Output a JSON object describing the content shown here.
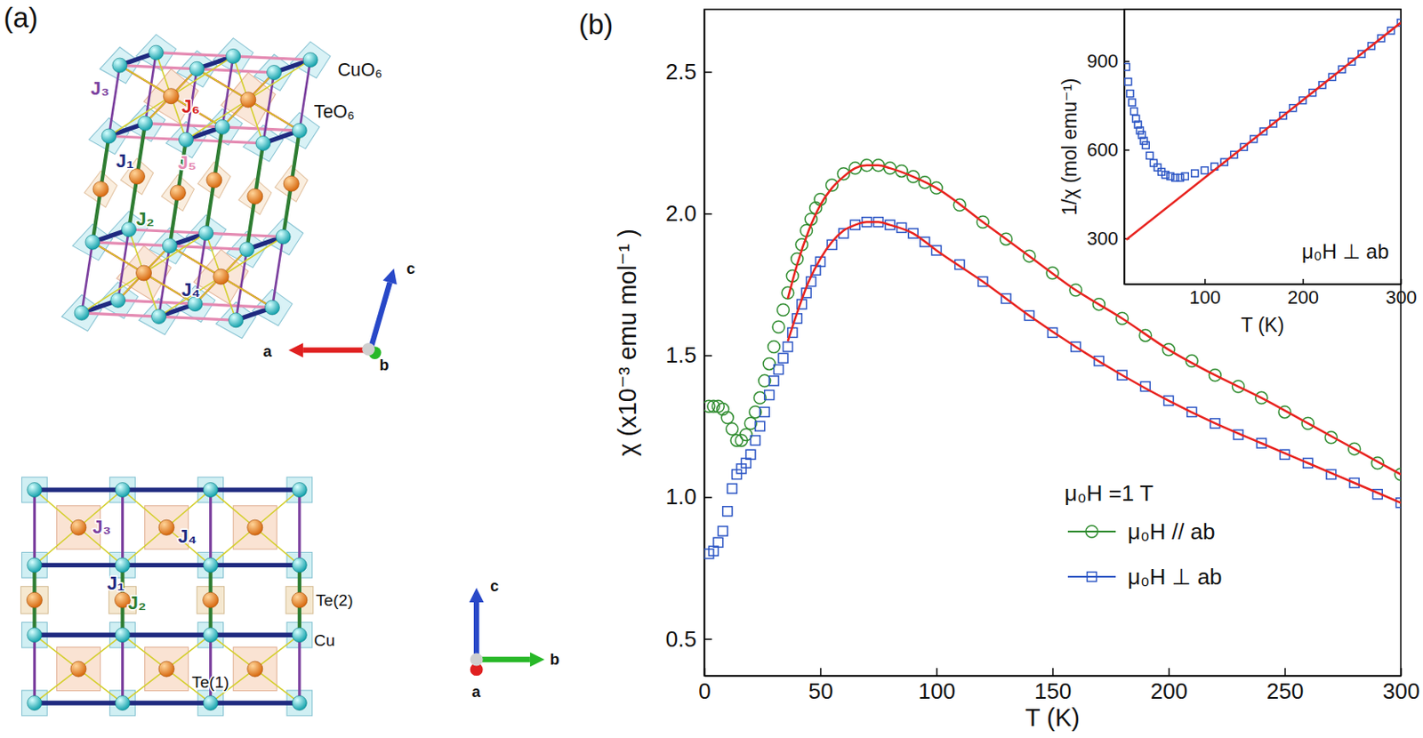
{
  "diagram": {
    "panel_label": "(a)",
    "top": {
      "polyhedra": [
        "CuO₆",
        "TeO₆"
      ],
      "couplings": [
        "J₁",
        "J₂",
        "J₃",
        "J₄",
        "J₅",
        "J₆"
      ],
      "axes": [
        "a",
        "b",
        "c"
      ]
    },
    "bottom": {
      "couplings": [
        "J₁",
        "J₂",
        "J₃",
        "J₄"
      ],
      "atoms": [
        "Te(2)",
        "Cu",
        "Te(1)"
      ],
      "axes": [
        "a",
        "b",
        "c"
      ]
    }
  },
  "chart_data": [
    {
      "type": "scatter",
      "annotations": [
        "(b)",
        "μ₀H =1 T"
      ],
      "x_label": "T (K)",
      "y_label": "χ (x10⁻³ emu mol⁻¹ )",
      "xlim": [
        0,
        300
      ],
      "xticks": [
        0,
        50,
        100,
        150,
        200,
        250,
        300
      ],
      "ylim": [
        0.37,
        2.72
      ],
      "yticks": [
        0.5,
        {
          "value": 1,
          "label": "1.0"
        },
        1.5,
        {
          "value": 2,
          "label": "2.0"
        },
        2.5
      ],
      "grid": false,
      "legend": "bottom right",
      "series": [
        {
          "name": "μ₀H // ab",
          "color": "#2e8b2e",
          "marker": "circle",
          "x": [
            2,
            4,
            6,
            8,
            10,
            12,
            14,
            16,
            18,
            20,
            22,
            24,
            26,
            28,
            30,
            32,
            34,
            36,
            38,
            40,
            42,
            44,
            46,
            48,
            50,
            55,
            60,
            65,
            70,
            75,
            80,
            85,
            90,
            95,
            100,
            110,
            120,
            130,
            140,
            150,
            160,
            170,
            180,
            190,
            200,
            210,
            220,
            230,
            240,
            250,
            260,
            270,
            280,
            290,
            300
          ],
          "values": [
            1.32,
            1.32,
            1.32,
            1.31,
            1.28,
            1.24,
            1.2,
            1.2,
            1.22,
            1.26,
            1.3,
            1.35,
            1.41,
            1.47,
            1.53,
            1.6,
            1.66,
            1.72,
            1.78,
            1.84,
            1.89,
            1.94,
            1.98,
            2.02,
            2.05,
            2.1,
            2.14,
            2.16,
            2.17,
            2.17,
            2.16,
            2.15,
            2.13,
            2.11,
            2.09,
            2.03,
            1.97,
            1.91,
            1.85,
            1.79,
            1.73,
            1.68,
            1.63,
            1.57,
            1.52,
            1.48,
            1.43,
            1.39,
            1.35,
            1.3,
            1.26,
            1.21,
            1.17,
            1.12,
            1.08
          ]
        },
        {
          "name": "μ₀H ⊥ ab",
          "color": "#2a54c4",
          "marker": "square",
          "x": [
            2,
            4,
            6,
            8,
            10,
            12,
            14,
            16,
            18,
            20,
            22,
            24,
            26,
            28,
            30,
            32,
            34,
            36,
            38,
            40,
            42,
            44,
            46,
            48,
            50,
            55,
            60,
            65,
            70,
            75,
            80,
            85,
            90,
            95,
            100,
            110,
            120,
            130,
            140,
            150,
            160,
            170,
            180,
            190,
            200,
            210,
            220,
            230,
            240,
            250,
            260,
            270,
            280,
            290,
            300
          ],
          "values": [
            0.8,
            0.81,
            0.84,
            0.88,
            0.95,
            1.03,
            1.08,
            1.1,
            1.12,
            1.15,
            1.2,
            1.25,
            1.3,
            1.36,
            1.41,
            1.45,
            1.49,
            1.53,
            1.58,
            1.63,
            1.68,
            1.72,
            1.76,
            1.8,
            1.83,
            1.89,
            1.93,
            1.96,
            1.97,
            1.97,
            1.96,
            1.95,
            1.93,
            1.9,
            1.87,
            1.82,
            1.76,
            1.7,
            1.64,
            1.58,
            1.53,
            1.48,
            1.43,
            1.39,
            1.34,
            1.3,
            1.26,
            1.22,
            1.19,
            1.15,
            1.12,
            1.08,
            1.05,
            1.01,
            0.98
          ]
        },
        {
          "type": "line",
          "color": "#e8231f",
          "line_style": "solid",
          "x": [
            36,
            40,
            45,
            50,
            55,
            60,
            65,
            70,
            75,
            80,
            90,
            100,
            120,
            140,
            160,
            180,
            200,
            220,
            240,
            260,
            280,
            300
          ],
          "values": [
            1.7,
            1.82,
            1.94,
            2.03,
            2.09,
            2.13,
            2.16,
            2.17,
            2.17,
            2.16,
            2.13,
            2.09,
            1.97,
            1.85,
            1.73,
            1.63,
            1.52,
            1.43,
            1.35,
            1.26,
            1.17,
            1.08
          ]
        },
        {
          "type": "line",
          "color": "#e8231f",
          "line_style": "solid",
          "x": [
            36,
            40,
            45,
            50,
            55,
            60,
            65,
            70,
            75,
            80,
            90,
            100,
            120,
            140,
            160,
            180,
            200,
            220,
            240,
            260,
            280,
            300
          ],
          "values": [
            1.55,
            1.65,
            1.76,
            1.84,
            1.9,
            1.94,
            1.96,
            1.97,
            1.97,
            1.96,
            1.93,
            1.87,
            1.76,
            1.64,
            1.53,
            1.43,
            1.34,
            1.26,
            1.19,
            1.12,
            1.05,
            0.98
          ]
        }
      ]
    },
    {
      "type": "scatter",
      "annotations": [
        "μ₀H ⊥ ab"
      ],
      "x_label": "T (K)",
      "y_label": "1/χ (mol emu⁻¹)",
      "xlim": [
        18,
        300
      ],
      "xticks": [
        100,
        200,
        300
      ],
      "ylim": [
        145,
        1075
      ],
      "yticks": [
        300,
        600,
        900
      ],
      "grid": false,
      "series": [
        {
          "color": "#2a54c4",
          "marker": "square",
          "x": [
            20,
            22,
            24,
            26,
            28,
            30,
            32,
            34,
            36,
            38,
            40,
            44,
            48,
            52,
            56,
            60,
            65,
            70,
            75,
            80,
            90,
            100,
            110,
            120,
            130,
            140,
            150,
            160,
            170,
            180,
            190,
            200,
            210,
            220,
            230,
            240,
            250,
            260,
            270,
            280,
            290,
            300
          ],
          "values": [
            880,
            830,
            790,
            760,
            730,
            705,
            685,
            665,
            650,
            630,
            615,
            580,
            555,
            540,
            525,
            515,
            510,
            505,
            505,
            510,
            520,
            530,
            543,
            558,
            583,
            609,
            636,
            662,
            688,
            715,
            741,
            767,
            793,
            819,
            846,
            872,
            898,
            924,
            951,
            977,
            1003,
            1030
          ]
        },
        {
          "type": "line",
          "color": "#e8231f",
          "line_style": "solid",
          "x": [
            20,
            300
          ],
          "values": [
            295,
            1030
          ]
        }
      ]
    }
  ]
}
